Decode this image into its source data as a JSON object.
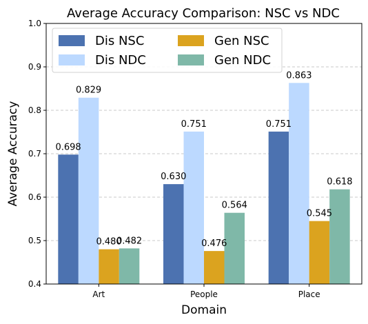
{
  "chart_data": {
    "type": "bar",
    "title": "Average Accuracy Comparison: NSC vs NDC",
    "xlabel": "Domain",
    "ylabel": "Average Accuracy",
    "categories": [
      "Art",
      "People",
      "Place"
    ],
    "ylim": [
      0.4,
      1.0
    ],
    "yticks": [
      "0.4",
      "0.5",
      "0.6",
      "0.7",
      "0.8",
      "0.9",
      "1.0"
    ],
    "grid": "y-dashed",
    "legend_position": "top-left",
    "series": [
      {
        "name": "Dis NSC",
        "color": "#4c72b0",
        "values": [
          0.698,
          0.63,
          0.751
        ],
        "labels": [
          "0.698",
          "0.630",
          "0.751"
        ]
      },
      {
        "name": "Dis NDC",
        "color": "#bcd9ff",
        "values": [
          0.829,
          0.751,
          0.863
        ],
        "labels": [
          "0.829",
          "0.751",
          "0.863"
        ]
      },
      {
        "name": "Gen NSC",
        "color": "#dba31f",
        "values": [
          0.48,
          0.476,
          0.545
        ],
        "labels": [
          "0.480",
          "0.476",
          "0.545"
        ]
      },
      {
        "name": "Gen NDC",
        "color": "#7fb8a8",
        "values": [
          0.482,
          0.564,
          0.618
        ],
        "labels": [
          "0.482",
          "0.564",
          "0.618"
        ]
      }
    ]
  }
}
